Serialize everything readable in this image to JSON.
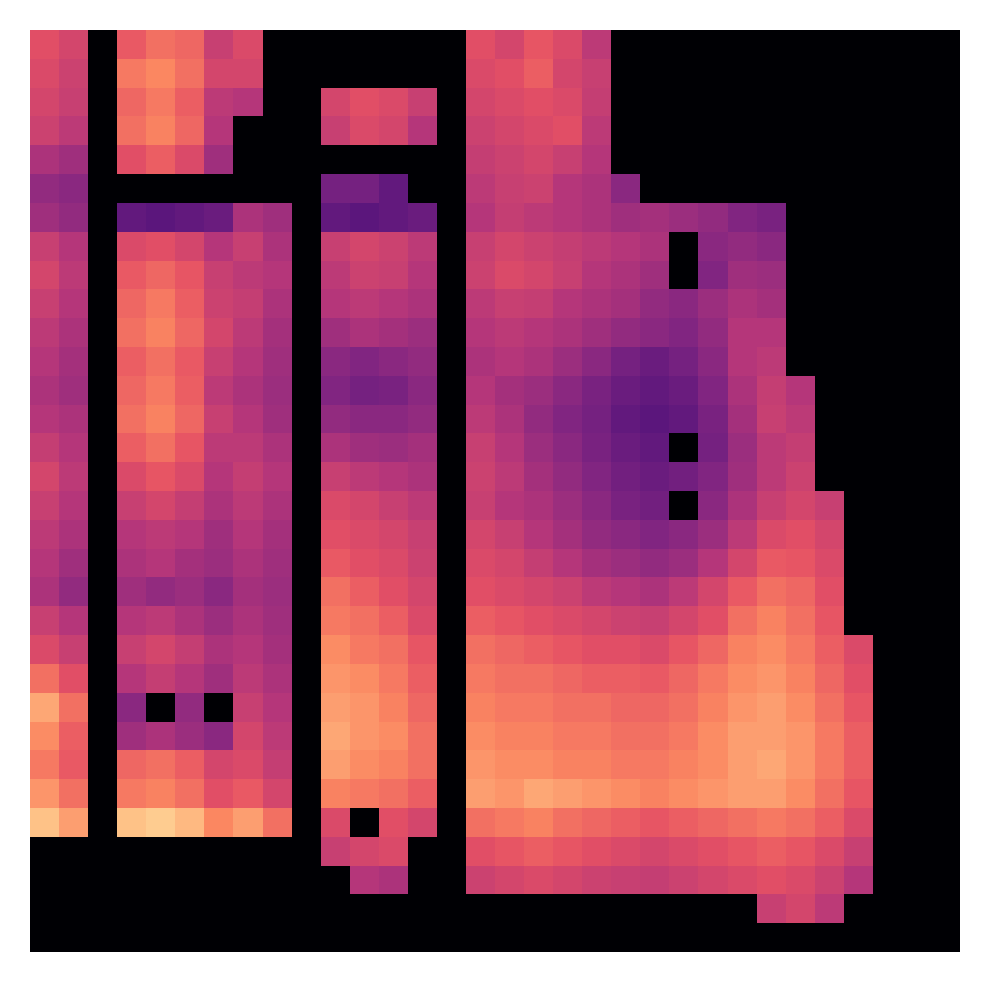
{
  "chart_data": {
    "type": "heatmap",
    "tick_labels": false,
    "zlim": [
      0,
      100
    ],
    "cells": [
      [
        62,
        58,
        0,
        65,
        70,
        68,
        55,
        60,
        0,
        0,
        0,
        0,
        0,
        0,
        0,
        62,
        58,
        64,
        60,
        52,
        0,
        0,
        0,
        0,
        0,
        0,
        0,
        0,
        0,
        0,
        0,
        0
      ],
      [
        60,
        56,
        0,
        72,
        75,
        70,
        58,
        58,
        0,
        0,
        0,
        0,
        0,
        0,
        0,
        60,
        62,
        66,
        58,
        55,
        0,
        0,
        0,
        0,
        0,
        0,
        0,
        0,
        0,
        0,
        0,
        0
      ],
      [
        58,
        55,
        0,
        68,
        72,
        66,
        52,
        50,
        0,
        0,
        58,
        62,
        60,
        55,
        0,
        58,
        60,
        62,
        60,
        54,
        0,
        0,
        0,
        0,
        0,
        0,
        0,
        0,
        0,
        0,
        0,
        0
      ],
      [
        56,
        52,
        0,
        70,
        74,
        68,
        50,
        0,
        0,
        0,
        55,
        60,
        58,
        50,
        0,
        56,
        58,
        60,
        62,
        52,
        0,
        0,
        0,
        0,
        0,
        0,
        0,
        0,
        0,
        0,
        0,
        0
      ],
      [
        48,
        45,
        0,
        62,
        66,
        60,
        45,
        0,
        0,
        0,
        0,
        0,
        0,
        0,
        0,
        54,
        56,
        58,
        55,
        50,
        0,
        0,
        0,
        0,
        0,
        0,
        0,
        0,
        0,
        0,
        0,
        0
      ],
      [
        42,
        40,
        0,
        0,
        0,
        0,
        0,
        0,
        0,
        0,
        35,
        35,
        30,
        0,
        0,
        52,
        55,
        56,
        50,
        48,
        40,
        0,
        0,
        0,
        0,
        0,
        0,
        0,
        0,
        0,
        0,
        0
      ],
      [
        45,
        42,
        0,
        30,
        28,
        30,
        32,
        48,
        45,
        0,
        30,
        28,
        30,
        32,
        0,
        50,
        54,
        52,
        50,
        48,
        45,
        46,
        44,
        42,
        38,
        36,
        0,
        0,
        0,
        0,
        0,
        0
      ],
      [
        55,
        50,
        0,
        60,
        62,
        58,
        50,
        55,
        48,
        0,
        55,
        58,
        56,
        52,
        0,
        55,
        58,
        56,
        54,
        52,
        50,
        48,
        0,
        40,
        42,
        40,
        0,
        0,
        0,
        0,
        0,
        0
      ],
      [
        58,
        52,
        0,
        65,
        68,
        64,
        55,
        52,
        50,
        0,
        52,
        56,
        55,
        50,
        0,
        56,
        60,
        58,
        55,
        50,
        48,
        45,
        0,
        38,
        45,
        44,
        0,
        0,
        0,
        0,
        0,
        0
      ],
      [
        55,
        50,
        0,
        68,
        72,
        66,
        56,
        54,
        48,
        0,
        50,
        52,
        50,
        48,
        0,
        52,
        55,
        54,
        50,
        48,
        46,
        42,
        40,
        44,
        48,
        46,
        0,
        0,
        0,
        0,
        0,
        0
      ],
      [
        52,
        48,
        0,
        70,
        74,
        68,
        58,
        52,
        46,
        0,
        45,
        48,
        46,
        44,
        0,
        50,
        52,
        50,
        48,
        45,
        42,
        40,
        38,
        42,
        50,
        50,
        0,
        0,
        0,
        0,
        0,
        0
      ],
      [
        50,
        46,
        0,
        66,
        70,
        65,
        55,
        50,
        45,
        0,
        40,
        38,
        40,
        42,
        0,
        48,
        50,
        48,
        44,
        40,
        35,
        32,
        35,
        40,
        50,
        52,
        0,
        0,
        0,
        0,
        0,
        0
      ],
      [
        48,
        45,
        0,
        68,
        72,
        66,
        52,
        48,
        44,
        0,
        38,
        35,
        36,
        40,
        0,
        50,
        46,
        44,
        40,
        36,
        32,
        30,
        32,
        38,
        48,
        54,
        50,
        0,
        0,
        0,
        0,
        0
      ],
      [
        50,
        48,
        0,
        70,
        74,
        68,
        55,
        50,
        45,
        0,
        42,
        40,
        40,
        42,
        0,
        52,
        48,
        42,
        38,
        35,
        30,
        28,
        30,
        36,
        46,
        55,
        52,
        0,
        0,
        0,
        0,
        0
      ],
      [
        54,
        50,
        0,
        66,
        70,
        64,
        52,
        52,
        48,
        0,
        48,
        45,
        44,
        46,
        0,
        55,
        50,
        44,
        40,
        36,
        32,
        30,
        0,
        35,
        44,
        52,
        54,
        0,
        0,
        0,
        0,
        0
      ],
      [
        58,
        52,
        0,
        60,
        64,
        60,
        50,
        54,
        50,
        0,
        55,
        52,
        50,
        48,
        0,
        56,
        52,
        46,
        42,
        38,
        34,
        32,
        34,
        38,
        45,
        52,
        56,
        0,
        0,
        0,
        0,
        0
      ],
      [
        55,
        50,
        0,
        55,
        58,
        54,
        48,
        52,
        48,
        0,
        60,
        58,
        55,
        52,
        0,
        55,
        50,
        48,
        44,
        40,
        36,
        34,
        0,
        40,
        48,
        55,
        58,
        55,
        0,
        0,
        0,
        0
      ],
      [
        52,
        48,
        0,
        50,
        52,
        50,
        45,
        50,
        46,
        0,
        62,
        60,
        58,
        55,
        0,
        58,
        55,
        50,
        46,
        42,
        40,
        38,
        40,
        44,
        52,
        60,
        62,
        58,
        0,
        0,
        0,
        0
      ],
      [
        50,
        45,
        0,
        48,
        50,
        46,
        44,
        48,
        45,
        0,
        65,
        62,
        60,
        56,
        0,
        60,
        58,
        54,
        50,
        46,
        44,
        42,
        44,
        50,
        58,
        65,
        64,
        60,
        0,
        0,
        0,
        0
      ],
      [
        48,
        42,
        0,
        45,
        42,
        44,
        40,
        46,
        44,
        0,
        70,
        66,
        62,
        58,
        0,
        62,
        60,
        58,
        56,
        52,
        50,
        48,
        52,
        58,
        65,
        70,
        68,
        62,
        0,
        0,
        0,
        0
      ],
      [
        55,
        50,
        0,
        50,
        52,
        48,
        44,
        48,
        45,
        0,
        72,
        70,
        66,
        60,
        0,
        66,
        64,
        62,
        60,
        58,
        56,
        55,
        58,
        62,
        70,
        74,
        70,
        64,
        0,
        0,
        0,
        0
      ],
      [
        60,
        55,
        0,
        55,
        58,
        54,
        48,
        50,
        46,
        0,
        76,
        72,
        70,
        64,
        0,
        70,
        68,
        66,
        64,
        62,
        62,
        60,
        64,
        68,
        74,
        76,
        72,
        66,
        60,
        0,
        0,
        0
      ],
      [
        70,
        62,
        0,
        50,
        54,
        50,
        45,
        52,
        48,
        0,
        78,
        76,
        72,
        66,
        0,
        72,
        70,
        70,
        68,
        66,
        66,
        65,
        68,
        72,
        76,
        78,
        74,
        68,
        62,
        0,
        0,
        0
      ],
      [
        82,
        70,
        0,
        40,
        0,
        42,
        0,
        55,
        50,
        0,
        80,
        78,
        74,
        68,
        0,
        74,
        72,
        72,
        70,
        70,
        68,
        68,
        70,
        74,
        78,
        80,
        76,
        70,
        64,
        0,
        0,
        0
      ],
      [
        76,
        66,
        0,
        45,
        48,
        44,
        40,
        58,
        52,
        0,
        82,
        78,
        76,
        70,
        0,
        76,
        74,
        74,
        72,
        72,
        70,
        70,
        72,
        76,
        80,
        80,
        78,
        72,
        66,
        0,
        0,
        0
      ],
      [
        72,
        65,
        0,
        68,
        70,
        66,
        58,
        60,
        54,
        0,
        80,
        76,
        74,
        70,
        0,
        78,
        76,
        76,
        74,
        74,
        72,
        72,
        74,
        76,
        80,
        82,
        78,
        72,
        66,
        0,
        0,
        0
      ],
      [
        78,
        70,
        0,
        72,
        74,
        70,
        62,
        65,
        58,
        0,
        74,
        72,
        70,
        66,
        0,
        80,
        78,
        82,
        80,
        78,
        76,
        74,
        76,
        78,
        80,
        80,
        76,
        70,
        64,
        0,
        0,
        0
      ],
      [
        88,
        80,
        0,
        88,
        90,
        86,
        75,
        80,
        70,
        0,
        60,
        0,
        62,
        58,
        0,
        70,
        72,
        74,
        70,
        68,
        66,
        64,
        66,
        68,
        70,
        72,
        70,
        66,
        60,
        0,
        0,
        0
      ],
      [
        0,
        0,
        0,
        0,
        0,
        0,
        0,
        0,
        0,
        0,
        55,
        58,
        60,
        0,
        0,
        62,
        64,
        66,
        64,
        62,
        60,
        58,
        60,
        62,
        64,
        66,
        64,
        60,
        55,
        0,
        0,
        0
      ],
      [
        0,
        0,
        0,
        0,
        0,
        0,
        0,
        0,
        0,
        0,
        0,
        50,
        48,
        0,
        0,
        56,
        58,
        60,
        58,
        56,
        55,
        54,
        56,
        58,
        60,
        62,
        60,
        56,
        50,
        0,
        0,
        0
      ],
      [
        0,
        0,
        0,
        0,
        0,
        0,
        0,
        0,
        0,
        0,
        0,
        0,
        0,
        0,
        0,
        0,
        0,
        0,
        0,
        0,
        0,
        0,
        0,
        0,
        0,
        55,
        58,
        52,
        0,
        0,
        0,
        0
      ],
      [
        0,
        0,
        0,
        0,
        0,
        0,
        0,
        0,
        0,
        0,
        0,
        0,
        0,
        0,
        0,
        0,
        0,
        0,
        0,
        0,
        0,
        0,
        0,
        0,
        0,
        0,
        0,
        0,
        0,
        0,
        0,
        0
      ]
    ]
  }
}
